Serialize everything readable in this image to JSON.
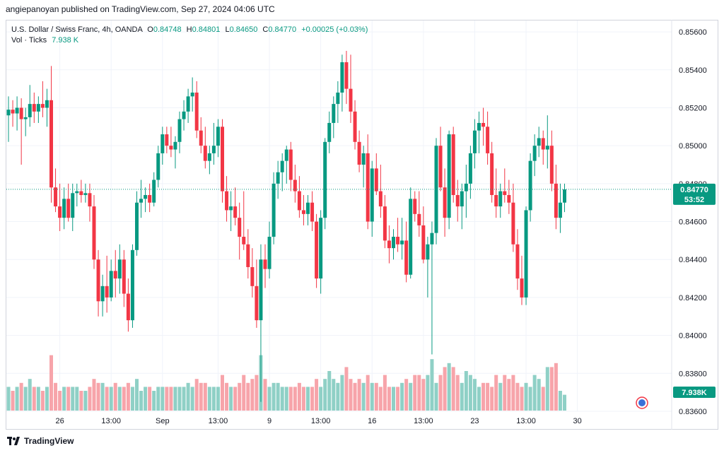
{
  "header": {
    "publish_text": "angiepanoyan published on TradingView.com, Sep 27, 2024 04:06 UTC"
  },
  "legend": {
    "symbol": "U.S. Dollar / Swiss Franc, 4h, OANDA",
    "o_label": "O",
    "o": "0.84748",
    "h_label": "H",
    "h": "0.84801",
    "l_label": "L",
    "l": "0.84650",
    "c_label": "C",
    "c": "0.84770",
    "change": "+0.00025 (+0.03%)",
    "vol_label": "Vol · Ticks",
    "vol_value": "7.938 K"
  },
  "footer": {
    "brand": "TradingView"
  },
  "colors": {
    "up": "#089981",
    "down": "#f23645",
    "up_vol": "#8fd0c6",
    "down_vol": "#f7a4aa",
    "grid": "#f0f3fa"
  },
  "chart_data": {
    "type": "candlestick",
    "symbol": "USDCHF",
    "interval": "4h",
    "y_ticks": [
      "0.85600",
      "0.85400",
      "0.85200",
      "0.85000",
      "0.84800",
      "0.84600",
      "0.84400",
      "0.84200",
      "0.84000",
      "0.83800",
      "0.83600"
    ],
    "ylim": [
      0.836,
      0.8566
    ],
    "x_tick_labels": [
      {
        "label": "26",
        "bar": 12
      },
      {
        "label": "13:00",
        "bar": 24
      },
      {
        "label": "Sep",
        "bar": 36
      },
      {
        "label": "13:00",
        "bar": 49
      },
      {
        "label": "9",
        "bar": 61
      },
      {
        "label": "13:00",
        "bar": 73
      },
      {
        "label": "16",
        "bar": 85
      },
      {
        "label": "13:00",
        "bar": 97
      },
      {
        "label": "23",
        "bar": 109
      },
      {
        "label": "13:00",
        "bar": 121
      },
      {
        "label": "30",
        "bar": 133
      }
    ],
    "last_price": "0.84770",
    "countdown": "53:52",
    "volume_label": "7.938K",
    "candles": [
      [
        0.8516,
        0.8526,
        0.8502,
        0.8519,
        6
      ],
      [
        0.8519,
        0.8524,
        0.851,
        0.8517,
        5
      ],
      [
        0.8517,
        0.8526,
        0.8508,
        0.852,
        6
      ],
      [
        0.852,
        0.8525,
        0.849,
        0.8514,
        7
      ],
      [
        0.8514,
        0.852,
        0.8505,
        0.8515,
        6
      ],
      [
        0.8515,
        0.8532,
        0.851,
        0.8522,
        8
      ],
      [
        0.8522,
        0.8528,
        0.8512,
        0.8518,
        6
      ],
      [
        0.8518,
        0.8526,
        0.8512,
        0.8522,
        6
      ],
      [
        0.8522,
        0.8534,
        0.8515,
        0.852,
        5
      ],
      [
        0.852,
        0.853,
        0.851,
        0.8524,
        6
      ],
      [
        0.8524,
        0.8542,
        0.847,
        0.8478,
        14
      ],
      [
        0.8478,
        0.8488,
        0.8465,
        0.8468,
        7
      ],
      [
        0.8468,
        0.848,
        0.8455,
        0.8462,
        5
      ],
      [
        0.8462,
        0.8478,
        0.8456,
        0.8472,
        6
      ],
      [
        0.8472,
        0.848,
        0.846,
        0.8462,
        6
      ],
      [
        0.8462,
        0.848,
        0.8455,
        0.8475,
        6
      ],
      [
        0.8475,
        0.848,
        0.8468,
        0.8476,
        6
      ],
      [
        0.8476,
        0.8482,
        0.847,
        0.8474,
        5
      ],
      [
        0.8474,
        0.848,
        0.847,
        0.8475,
        5
      ],
      [
        0.8475,
        0.848,
        0.846,
        0.8468,
        6
      ],
      [
        0.8468,
        0.8474,
        0.8435,
        0.844,
        8
      ],
      [
        0.844,
        0.8445,
        0.841,
        0.8418,
        7
      ],
      [
        0.8418,
        0.8432,
        0.841,
        0.8426,
        7
      ],
      [
        0.8426,
        0.8442,
        0.8412,
        0.842,
        6
      ],
      [
        0.842,
        0.844,
        0.8418,
        0.8434,
        6
      ],
      [
        0.8434,
        0.8445,
        0.842,
        0.843,
        7
      ],
      [
        0.843,
        0.8448,
        0.8422,
        0.844,
        6
      ],
      [
        0.844,
        0.8445,
        0.8415,
        0.8422,
        6
      ],
      [
        0.8422,
        0.843,
        0.8402,
        0.8408,
        7
      ],
      [
        0.8408,
        0.8448,
        0.8404,
        0.8445,
        6
      ],
      [
        0.8445,
        0.8476,
        0.8442,
        0.847,
        8
      ],
      [
        0.847,
        0.8482,
        0.8462,
        0.8472,
        5
      ],
      [
        0.8472,
        0.8478,
        0.8465,
        0.8474,
        6
      ],
      [
        0.8474,
        0.848,
        0.8465,
        0.847,
        6
      ],
      [
        0.847,
        0.8486,
        0.8468,
        0.8482,
        5
      ],
      [
        0.8482,
        0.85,
        0.8478,
        0.8496,
        6
      ],
      [
        0.8496,
        0.851,
        0.849,
        0.8506,
        6
      ],
      [
        0.8506,
        0.851,
        0.8496,
        0.85,
        6
      ],
      [
        0.85,
        0.851,
        0.8494,
        0.8498,
        6
      ],
      [
        0.8498,
        0.8505,
        0.8488,
        0.8502,
        6
      ],
      [
        0.8502,
        0.8518,
        0.8496,
        0.8514,
        6
      ],
      [
        0.8514,
        0.8524,
        0.8508,
        0.8518,
        6
      ],
      [
        0.8518,
        0.853,
        0.8512,
        0.8526,
        7
      ],
      [
        0.8526,
        0.8536,
        0.8518,
        0.8528,
        6
      ],
      [
        0.8528,
        0.8534,
        0.8504,
        0.8508,
        8
      ],
      [
        0.8508,
        0.8515,
        0.8496,
        0.85,
        7
      ],
      [
        0.85,
        0.851,
        0.8488,
        0.8492,
        7
      ],
      [
        0.8492,
        0.85,
        0.8485,
        0.8496,
        6
      ],
      [
        0.8496,
        0.8512,
        0.849,
        0.85,
        6
      ],
      [
        0.85,
        0.8514,
        0.8494,
        0.851,
        6
      ],
      [
        0.851,
        0.8514,
        0.847,
        0.8476,
        9
      ],
      [
        0.8476,
        0.8484,
        0.846,
        0.8466,
        7
      ],
      [
        0.8466,
        0.8476,
        0.8455,
        0.8468,
        6
      ],
      [
        0.8468,
        0.8478,
        0.8458,
        0.8462,
        6
      ],
      [
        0.8462,
        0.847,
        0.844,
        0.8452,
        7
      ],
      [
        0.8452,
        0.8476,
        0.8445,
        0.8448,
        9
      ],
      [
        0.8448,
        0.8456,
        0.843,
        0.8436,
        7
      ],
      [
        0.8436,
        0.8446,
        0.842,
        0.8426,
        8
      ],
      [
        0.8426,
        0.844,
        0.8404,
        0.8408,
        9
      ],
      [
        0.8408,
        0.8448,
        0.8365,
        0.844,
        14
      ],
      [
        0.844,
        0.8448,
        0.8425,
        0.8435,
        8
      ],
      [
        0.8435,
        0.846,
        0.843,
        0.8452,
        6
      ],
      [
        0.8452,
        0.8486,
        0.8448,
        0.848,
        7
      ],
      [
        0.848,
        0.8492,
        0.8472,
        0.8486,
        7
      ],
      [
        0.8486,
        0.8496,
        0.8476,
        0.8492,
        6
      ],
      [
        0.8492,
        0.85,
        0.848,
        0.8498,
        6
      ],
      [
        0.8498,
        0.8502,
        0.8476,
        0.8482,
        6
      ],
      [
        0.8482,
        0.849,
        0.847,
        0.8476,
        6
      ],
      [
        0.8476,
        0.8484,
        0.8462,
        0.8466,
        7
      ],
      [
        0.8466,
        0.8474,
        0.8458,
        0.8464,
        6
      ],
      [
        0.8464,
        0.8474,
        0.8458,
        0.847,
        6
      ],
      [
        0.847,
        0.8476,
        0.8455,
        0.846,
        6
      ],
      [
        0.846,
        0.8464,
        0.8425,
        0.843,
        8
      ],
      [
        0.843,
        0.8466,
        0.8422,
        0.8462,
        6
      ],
      [
        0.8462,
        0.8504,
        0.8456,
        0.8502,
        8
      ],
      [
        0.8502,
        0.8518,
        0.8496,
        0.8512,
        10
      ],
      [
        0.8512,
        0.8526,
        0.8504,
        0.8522,
        8
      ],
      [
        0.8522,
        0.8534,
        0.8512,
        0.8528,
        7
      ],
      [
        0.8528,
        0.8548,
        0.8518,
        0.8544,
        9
      ],
      [
        0.8544,
        0.855,
        0.8522,
        0.853,
        11
      ],
      [
        0.853,
        0.8548,
        0.8512,
        0.8518,
        8
      ],
      [
        0.8518,
        0.8524,
        0.8498,
        0.8502,
        7
      ],
      [
        0.8502,
        0.8508,
        0.8486,
        0.849,
        8
      ],
      [
        0.849,
        0.85,
        0.8478,
        0.8496,
        7
      ],
      [
        0.8496,
        0.8506,
        0.8456,
        0.846,
        9
      ],
      [
        0.846,
        0.8492,
        0.8452,
        0.8488,
        7
      ],
      [
        0.8488,
        0.8496,
        0.8474,
        0.8476,
        7
      ],
      [
        0.8476,
        0.849,
        0.8462,
        0.8468,
        6
      ],
      [
        0.8468,
        0.8474,
        0.8446,
        0.845,
        9
      ],
      [
        0.845,
        0.8458,
        0.8438,
        0.8446,
        6
      ],
      [
        0.8446,
        0.8456,
        0.844,
        0.8452,
        6
      ],
      [
        0.8452,
        0.8462,
        0.8444,
        0.8448,
        6
      ],
      [
        0.8448,
        0.8462,
        0.844,
        0.845,
        7
      ],
      [
        0.845,
        0.846,
        0.8428,
        0.8432,
        8
      ],
      [
        0.8432,
        0.8478,
        0.843,
        0.8472,
        7
      ],
      [
        0.8472,
        0.8476,
        0.846,
        0.8464,
        9
      ],
      [
        0.8464,
        0.8476,
        0.8452,
        0.8458,
        9
      ],
      [
        0.8458,
        0.8468,
        0.8438,
        0.844,
        8
      ],
      [
        0.844,
        0.8452,
        0.842,
        0.8448,
        9
      ],
      [
        0.8448,
        0.846,
        0.839,
        0.8454,
        13
      ],
      [
        0.8454,
        0.8504,
        0.8448,
        0.85,
        7
      ],
      [
        0.85,
        0.851,
        0.8476,
        0.8478,
        9
      ],
      [
        0.8478,
        0.8488,
        0.8452,
        0.8462,
        11
      ],
      [
        0.8462,
        0.8508,
        0.8456,
        0.8506,
        12
      ],
      [
        0.8506,
        0.851,
        0.847,
        0.8474,
        11
      ],
      [
        0.8474,
        0.8482,
        0.846,
        0.8468,
        9
      ],
      [
        0.8468,
        0.848,
        0.8456,
        0.8476,
        7
      ],
      [
        0.8476,
        0.849,
        0.8462,
        0.848,
        10
      ],
      [
        0.848,
        0.85,
        0.8472,
        0.8496,
        9
      ],
      [
        0.8496,
        0.8514,
        0.8488,
        0.8508,
        8
      ],
      [
        0.8508,
        0.8518,
        0.8496,
        0.8512,
        6
      ],
      [
        0.8512,
        0.852,
        0.85,
        0.851,
        7
      ],
      [
        0.851,
        0.8518,
        0.849,
        0.8496,
        7
      ],
      [
        0.8496,
        0.8502,
        0.847,
        0.8474,
        6
      ],
      [
        0.8474,
        0.8488,
        0.8462,
        0.8468,
        9
      ],
      [
        0.8468,
        0.848,
        0.8462,
        0.8476,
        7
      ],
      [
        0.8476,
        0.8488,
        0.847,
        0.8474,
        9
      ],
      [
        0.8474,
        0.8482,
        0.8464,
        0.847,
        8
      ],
      [
        0.847,
        0.848,
        0.8444,
        0.8448,
        9
      ],
      [
        0.8448,
        0.8456,
        0.8424,
        0.843,
        7
      ],
      [
        0.843,
        0.8442,
        0.8416,
        0.842,
        6
      ],
      [
        0.842,
        0.8468,
        0.8416,
        0.8466,
        7
      ],
      [
        0.8466,
        0.8496,
        0.846,
        0.8492,
        6
      ],
      [
        0.8492,
        0.8506,
        0.8484,
        0.85,
        9
      ],
      [
        0.85,
        0.851,
        0.8494,
        0.8504,
        8
      ],
      [
        0.8504,
        0.8508,
        0.849,
        0.8498,
        6
      ],
      [
        0.8498,
        0.8516,
        0.8488,
        0.85,
        11
      ],
      [
        0.85,
        0.8508,
        0.8476,
        0.848,
        11
      ],
      [
        0.848,
        0.849,
        0.8456,
        0.8462,
        12
      ],
      [
        0.8462,
        0.848,
        0.8454,
        0.847,
        5
      ],
      [
        0.847,
        0.848,
        0.8465,
        0.8477,
        4
      ]
    ]
  }
}
